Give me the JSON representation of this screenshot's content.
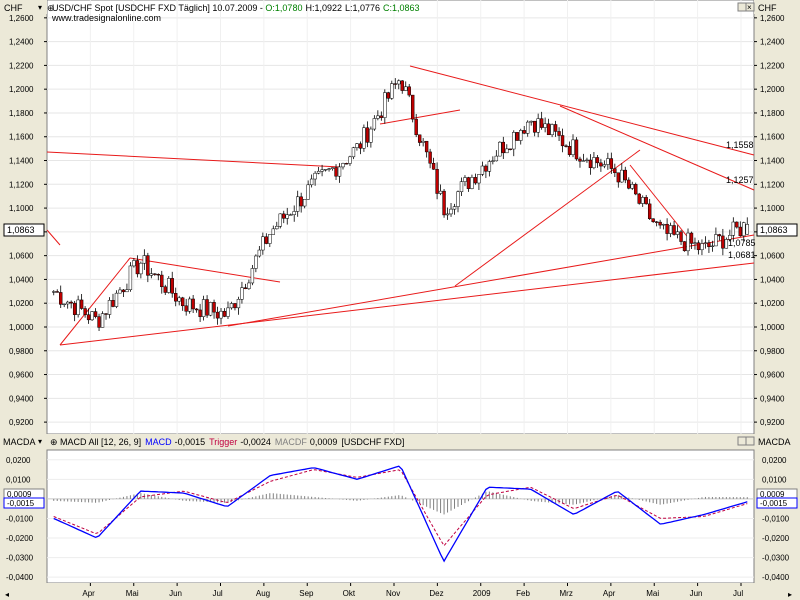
{
  "main": {
    "unit": "CHF",
    "header": {
      "symbol": "USD/CHF Spot [USDCHF FXD  Täglich] 10.07.2009 - ",
      "open": "O:1,0780",
      "high": "H:1,0922",
      "low": "L:1,0776",
      "close": "C:1,0863"
    },
    "website": "www.tradesignalonline.com",
    "y_ticks": [
      "1,2600",
      "1,2400",
      "1,2200",
      "1,2000",
      "1,1800",
      "1,1600",
      "1,1400",
      "1,1200",
      "1,1000",
      "1,0800",
      "1,0600",
      "1,0400",
      "1,0200",
      "1,0000",
      "0,9800",
      "0,9600",
      "0,9400",
      "0,9200"
    ],
    "current_price": "1,0863",
    "trend_labels": [
      "1,1558",
      "1,1257",
      "1,0785",
      "1,0681"
    ],
    "colors": {
      "up": "#ffffff",
      "down": "#c00000",
      "trend": "#e81a1a",
      "wick": "#000000"
    }
  },
  "macd": {
    "unit": "MACDA",
    "header": {
      "name": "MACD All [12, 26, 9]",
      "macd_label": "MACD",
      "macd_value": "-0,0015",
      "trigger_label": "Trigger",
      "trigger_value": "-0,0024",
      "macdf_label": "MACDF",
      "macdf_value": "0,0009",
      "source": "[USDCHF FXD]"
    },
    "y_ticks": [
      "0,0200",
      "0,0100",
      "0,0000",
      "-0,0100",
      "-0,0200",
      "-0,0300",
      "-0,0400"
    ],
    "flags": [
      "0,0009",
      "-0,0015"
    ],
    "colors": {
      "macd": "#0000ff",
      "trigger": "#c00040",
      "histogram": "#808080"
    }
  },
  "x_axis": {
    "labels": [
      "Apr",
      "Mai",
      "Jun",
      "Jul",
      "Aug",
      "Sep",
      "Okt",
      "Nov",
      "Dez",
      "2009",
      "Feb",
      "Mrz",
      "Apr",
      "Mai",
      "Jun",
      "Jul"
    ]
  },
  "chart_data": {
    "type": "candlestick",
    "title": "USD/CHF Spot [USDCHF FXD  Täglich] 10.07.2009",
    "ylabel": "CHF",
    "ylim": [
      0.91,
      1.275
    ],
    "x": [
      "2008-03",
      "2008-04",
      "2008-05",
      "2008-06",
      "2008-07",
      "2008-08",
      "2008-09",
      "2008-10",
      "2008-11",
      "2008-12",
      "2009-01",
      "2009-02",
      "2009-03",
      "2009-04",
      "2009-05",
      "2009-06",
      "2009-07-10"
    ],
    "series": [
      {
        "name": "USD/CHF",
        "values": [
          1.03,
          1.005,
          1.055,
          1.02,
          1.01,
          1.08,
          1.12,
          1.15,
          1.21,
          1.1,
          1.14,
          1.175,
          1.15,
          1.13,
          1.08,
          1.065,
          1.0863
        ]
      }
    ],
    "last": {
      "open": 1.078,
      "high": 1.0922,
      "low": 1.0776,
      "close": 1.0863
    },
    "indicator": {
      "name": "MACD All [12, 26, 9]",
      "ylim": [
        -0.043,
        0.025
      ],
      "series": [
        {
          "name": "MACD",
          "values": [
            -0.01,
            -0.02,
            0.004,
            0.003,
            -0.004,
            0.012,
            0.016,
            0.01,
            0.017,
            -0.032,
            0.006,
            0.005,
            -0.008,
            0.004,
            -0.013,
            -0.008,
            -0.0015
          ]
        },
        {
          "name": "Trigger",
          "values": [
            -0.009,
            -0.018,
            0.001,
            0.004,
            -0.002,
            0.009,
            0.015,
            0.011,
            0.015,
            -0.024,
            0.002,
            0.006,
            -0.005,
            0.002,
            -0.01,
            -0.009,
            -0.0024
          ]
        },
        {
          "name": "MACDF",
          "values": [
            -0.001,
            -0.002,
            0.003,
            -0.001,
            -0.002,
            0.003,
            0.001,
            -0.001,
            0.002,
            -0.008,
            0.004,
            -0.001,
            -0.003,
            0.002,
            -0.003,
            0.001,
            0.0009
          ]
        }
      ]
    }
  }
}
